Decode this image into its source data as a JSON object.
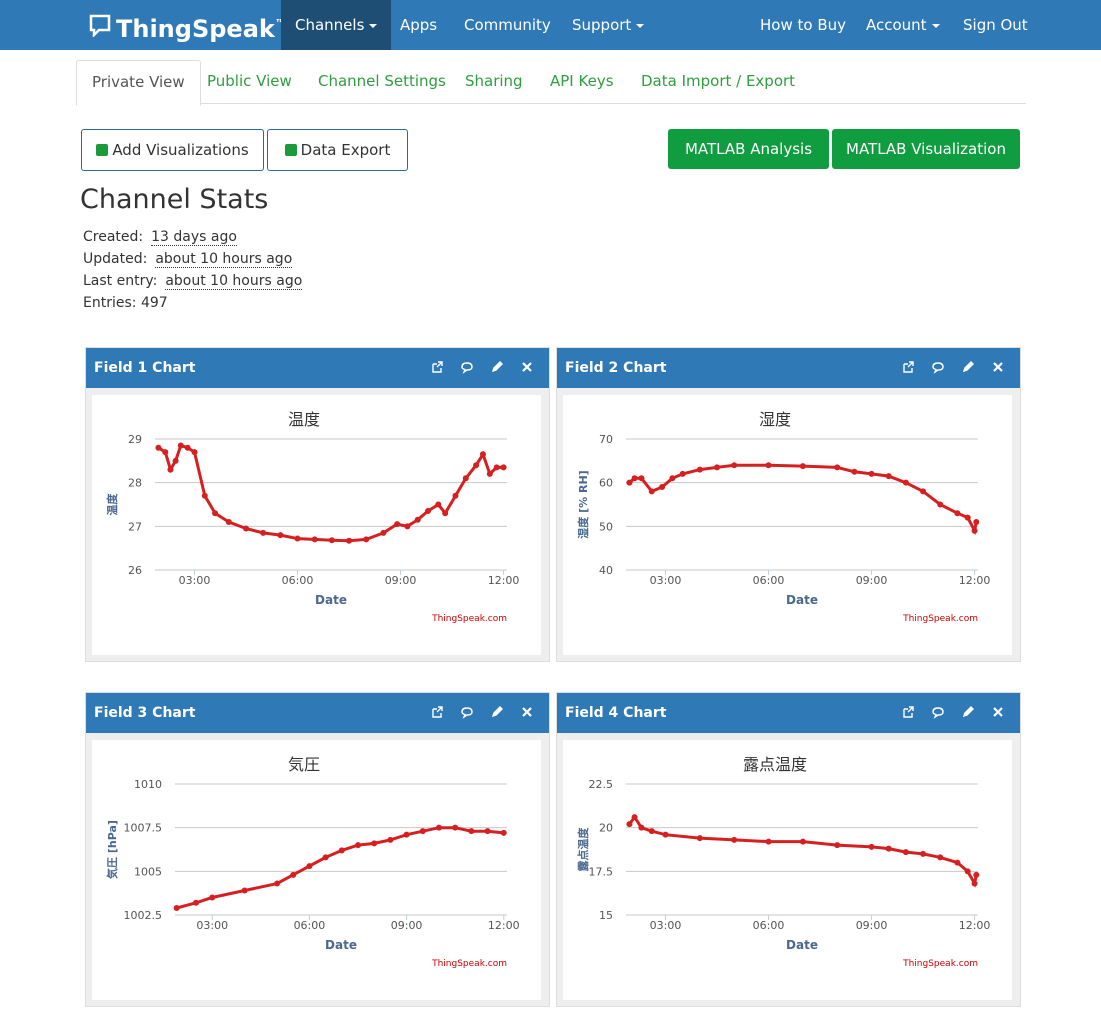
{
  "nav": {
    "brand": "ThingSpeak",
    "trademark": "™",
    "left": [
      "Channels",
      "Apps",
      "Community",
      "Support"
    ],
    "right": [
      "How to Buy",
      "Account",
      "Sign Out"
    ]
  },
  "tabs": [
    "Private View",
    "Public View",
    "Channel Settings",
    "Sharing",
    "API Keys",
    "Data Import / Export"
  ],
  "buttons": {
    "add_visualizations": "Add Visualizations",
    "data_export": "Data Export",
    "matlab_analysis": "MATLAB Analysis",
    "matlab_visualization": "MATLAB Visualization"
  },
  "stats": {
    "heading": "Channel Stats",
    "rows": [
      {
        "label": "Created:",
        "value": "13 days ago"
      },
      {
        "label": "Updated:",
        "value": "about 10 hours ago"
      },
      {
        "label": "Last entry:",
        "value": "about 10 hours ago"
      },
      {
        "label": "Entries:",
        "value": 497
      }
    ]
  },
  "widgets": [
    {
      "title": "Field 1 Chart",
      "chart_data": {
        "type": "line",
        "title": "温度",
        "xlabel": "Date",
        "ylabel": "温度",
        "credit": "ThingSpeak.com",
        "x": [
          1.95,
          2.15,
          2.3,
          2.45,
          2.6,
          2.8,
          3.0,
          3.3,
          3.6,
          4.0,
          4.5,
          5.0,
          5.5,
          6.0,
          6.5,
          7.0,
          7.5,
          8.0,
          8.5,
          8.9,
          9.2,
          9.5,
          9.8,
          10.1,
          10.3,
          10.6,
          10.9,
          11.2,
          11.4,
          11.6,
          11.8,
          12.0
        ],
        "series": [
          {
            "color": "#d62020",
            "values": [
              28.8,
              28.7,
              28.3,
              28.5,
              28.85,
              28.8,
              28.7,
              27.7,
              27.3,
              27.1,
              26.95,
              26.85,
              26.8,
              26.72,
              26.7,
              26.68,
              26.67,
              26.7,
              26.85,
              27.05,
              27.0,
              27.15,
              27.35,
              27.5,
              27.3,
              27.7,
              28.1,
              28.4,
              28.65,
              28.2,
              28.35,
              28.35
            ]
          }
        ],
        "xlim": [
          1.85,
          12.1
        ],
        "ylim": [
          26,
          29
        ],
        "xticks": [
          {
            "value": 3,
            "label": "03:00"
          },
          {
            "value": 6,
            "label": "06:00"
          },
          {
            "value": 9,
            "label": "09:00"
          },
          {
            "value": 12,
            "label": "12:00"
          }
        ],
        "yticks": [
          26,
          27,
          28,
          29
        ],
        "grid": true
      }
    },
    {
      "title": "Field 2 Chart",
      "chart_data": {
        "type": "line",
        "title": "湿度",
        "xlabel": "Date",
        "ylabel": "湿度 [% RH]",
        "credit": "ThingSpeak.com",
        "x": [
          1.95,
          2.1,
          2.3,
          2.6,
          2.9,
          3.2,
          3.5,
          4.0,
          4.5,
          5.0,
          6.0,
          7.0,
          8.0,
          8.5,
          9.0,
          9.5,
          10.0,
          10.5,
          11.0,
          11.5,
          11.8,
          12.0,
          12.05
        ],
        "series": [
          {
            "color": "#d62020",
            "values": [
              60,
              61,
              61,
              58,
              59,
              61,
              62,
              63,
              63.5,
              64,
              64,
              63.8,
              63.5,
              62.5,
              62,
              61.5,
              60,
              58,
              55,
              53,
              52,
              49,
              51
            ]
          }
        ],
        "xlim": [
          1.85,
          12.1
        ],
        "ylim": [
          40,
          70
        ],
        "xticks": [
          {
            "value": 3,
            "label": "03:00"
          },
          {
            "value": 6,
            "label": "06:00"
          },
          {
            "value": 9,
            "label": "09:00"
          },
          {
            "value": 12,
            "label": "12:00"
          }
        ],
        "yticks": [
          40,
          50,
          60,
          70
        ],
        "grid": true
      }
    },
    {
      "title": "Field 3 Chart",
      "chart_data": {
        "type": "line",
        "title": "気圧",
        "xlabel": "Date",
        "ylabel": "気圧 [hPa]",
        "credit": "ThingSpeak.com",
        "x": [
          1.9,
          2.5,
          3.0,
          4.0,
          5.0,
          5.5,
          6.0,
          6.5,
          7.0,
          7.5,
          8.0,
          8.5,
          9.0,
          9.5,
          10.0,
          10.5,
          11.0,
          11.5,
          12.0
        ],
        "series": [
          {
            "color": "#d62020",
            "values": [
              1002.9,
              1003.2,
              1003.5,
              1003.9,
              1004.3,
              1004.8,
              1005.3,
              1005.8,
              1006.2,
              1006.5,
              1006.6,
              1006.8,
              1007.1,
              1007.3,
              1007.5,
              1007.5,
              1007.3,
              1007.3,
              1007.2
            ]
          }
        ],
        "xlim": [
          1.85,
          12.1
        ],
        "ylim": [
          1002.5,
          1010
        ],
        "xticks": [
          {
            "value": 3,
            "label": "03:00"
          },
          {
            "value": 6,
            "label": "06:00"
          },
          {
            "value": 9,
            "label": "09:00"
          },
          {
            "value": 12,
            "label": "12:00"
          }
        ],
        "yticks": [
          1002.5,
          1005,
          1007.5,
          1010
        ],
        "grid": true
      }
    },
    {
      "title": "Field 4 Chart",
      "chart_data": {
        "type": "line",
        "title": "露点温度",
        "xlabel": "Date",
        "ylabel": "露点温度",
        "credit": "ThingSpeak.com",
        "x": [
          1.95,
          2.1,
          2.3,
          2.6,
          3.0,
          4.0,
          5.0,
          6.0,
          7.0,
          8.0,
          9.0,
          9.5,
          10.0,
          10.5,
          11.0,
          11.5,
          11.8,
          12.0,
          12.05
        ],
        "series": [
          {
            "color": "#d62020",
            "values": [
              20.2,
              20.6,
              20,
              19.8,
              19.6,
              19.4,
              19.3,
              19.2,
              19.2,
              19.0,
              18.9,
              18.8,
              18.6,
              18.5,
              18.3,
              18.0,
              17.5,
              16.8,
              17.3
            ]
          }
        ],
        "xlim": [
          1.85,
          12.1
        ],
        "ylim": [
          15,
          22.5
        ],
        "xticks": [
          {
            "value": 3,
            "label": "03:00"
          },
          {
            "value": 6,
            "label": "06:00"
          },
          {
            "value": 9,
            "label": "09:00"
          },
          {
            "value": 12,
            "label": "12:00"
          }
        ],
        "yticks": [
          15,
          17.5,
          20,
          22.5
        ],
        "grid": true
      }
    }
  ]
}
